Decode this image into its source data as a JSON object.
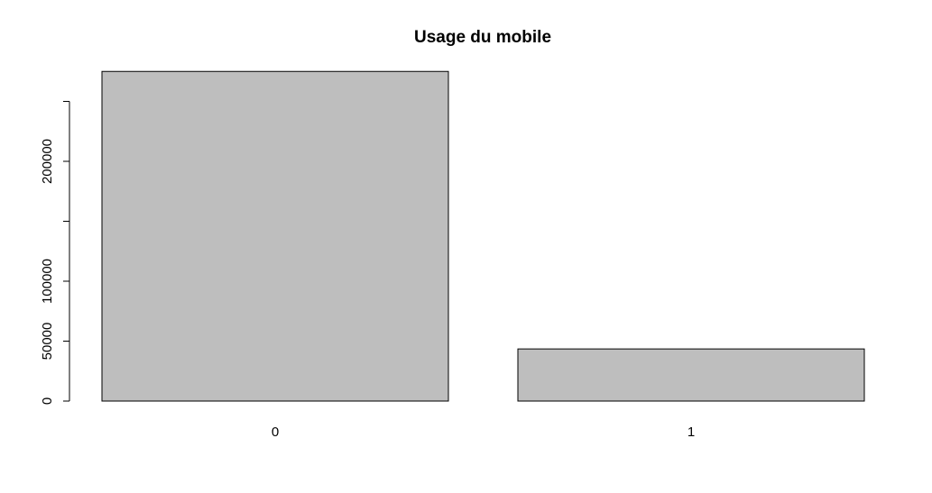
{
  "chart_data": {
    "type": "bar",
    "title": "Usage du mobile",
    "xlabel": "",
    "ylabel": "",
    "categories": [
      "0",
      "1"
    ],
    "values": [
      275000,
      43500
    ],
    "ylim": [
      0,
      275000
    ],
    "yticks": [
      0,
      50000,
      100000,
      150000,
      200000,
      250000
    ],
    "ytick_labels": [
      "0",
      "50000",
      "100000",
      "",
      "200000",
      ""
    ],
    "bar_color": "#bebebe",
    "grid": false,
    "legend": "none"
  }
}
